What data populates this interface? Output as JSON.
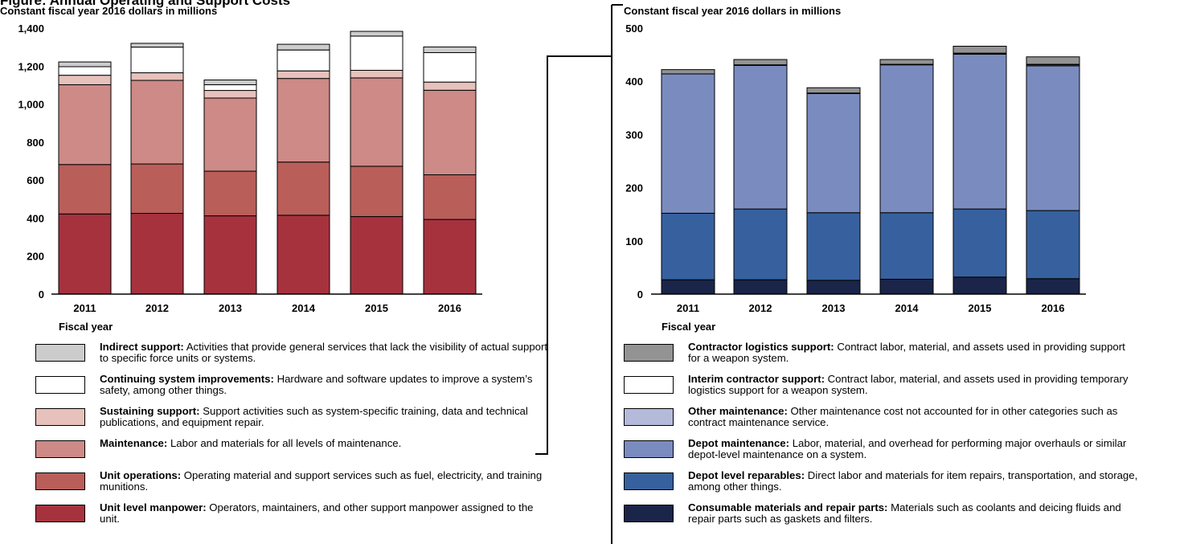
{
  "figure": {
    "title_fragment": "Figure: Annual Operating and Support Costs",
    "left_units": "Constant fiscal year 2016 dollars in millions",
    "right_units": "Constant fiscal year 2016 dollars in millions"
  },
  "chart_data": [
    {
      "type": "bar",
      "stacked": true,
      "subtitle": "Constant fiscal year 2016 dollars in millions",
      "xlabel": "Fiscal year",
      "ylabel": "",
      "categories": [
        "2011",
        "2012",
        "2013",
        "2014",
        "2015",
        "2016"
      ],
      "ylim": [
        0,
        1400
      ],
      "yticks": [
        0,
        200,
        400,
        600,
        800,
        1000,
        1200,
        1400
      ],
      "ytick_labels": [
        "0",
        "200",
        "400",
        "600",
        "800",
        "1,000",
        "1,200",
        "1,400"
      ],
      "grid": false,
      "series": [
        {
          "name": "Unit level manpower",
          "color": "#A6323E",
          "values": [
            422,
            425,
            412,
            415,
            408,
            393
          ]
        },
        {
          "name": "Unit operations",
          "color": "#BA5E5A",
          "values": [
            260,
            260,
            235,
            280,
            265,
            235
          ]
        },
        {
          "name": "Maintenance",
          "color": "#CD8A86",
          "values": [
            420,
            440,
            385,
            440,
            465,
            445
          ]
        },
        {
          "name": "Sustaining support",
          "color": "#E7C1BB",
          "values": [
            50,
            40,
            40,
            40,
            40,
            43
          ]
        },
        {
          "name": "Continuing system improvements",
          "color": "#FFFFFF",
          "values": [
            45,
            135,
            30,
            110,
            180,
            155
          ]
        },
        {
          "name": "Indirect support",
          "color": "#CCCCCC",
          "values": [
            25,
            20,
            25,
            30,
            25,
            30
          ]
        }
      ]
    },
    {
      "type": "bar",
      "stacked": true,
      "subtitle": "Constant fiscal year 2016 dollars in millions",
      "xlabel": "Fiscal year",
      "ylabel": "",
      "categories": [
        "2011",
        "2012",
        "2013",
        "2014",
        "2015",
        "2016"
      ],
      "ylim": [
        0,
        500
      ],
      "yticks": [
        0,
        100,
        200,
        300,
        400,
        500
      ],
      "ytick_labels": [
        "0",
        "100",
        "200",
        "300",
        "400",
        "500"
      ],
      "grid": false,
      "series": [
        {
          "name": "Consumable materials and repair parts",
          "color": "#1A2549",
          "values": [
            27,
            27,
            26,
            28,
            32,
            29
          ]
        },
        {
          "name": "Depot level reparables",
          "color": "#37619E",
          "values": [
            125,
            133,
            127,
            125,
            128,
            128
          ]
        },
        {
          "name": "Depot maintenance",
          "color": "#7A8CBF",
          "values": [
            262,
            270,
            224,
            278,
            291,
            272
          ]
        },
        {
          "name": "Other maintenance",
          "color": "#B4BADA",
          "values": [
            0,
            1,
            1,
            1,
            1,
            2
          ]
        },
        {
          "name": "Interim contractor support",
          "color": "#FFFFFF",
          "values": [
            0,
            0,
            0,
            0,
            1,
            1
          ]
        },
        {
          "name": "Contractor logistics support",
          "color": "#939393",
          "values": [
            8,
            10,
            10,
            9,
            13,
            14
          ]
        }
      ]
    }
  ],
  "left_legend": [
    {
      "label": "Indirect support:",
      "desc": "Activities that provide general services that lack the visibility of actual support to specific force units or systems.",
      "color": "#CCCCCC"
    },
    {
      "label": "Continuing system improvements:",
      "desc": "Hardware and software updates to improve a system’s safety, among other things.",
      "color": "#FFFFFF"
    },
    {
      "label": "Sustaining support:",
      "desc": "Support activities such as system-specific training, data and technical publications, and equipment repair.",
      "color": "#E7C1BB"
    },
    {
      "label": "Maintenance:",
      "desc": "Labor and materials for all levels of maintenance.",
      "color": "#CD8A86"
    },
    {
      "label": "Unit operations:",
      "desc": "Operating material and support services such as fuel, electricity, and training munitions.",
      "color": "#BA5E5A"
    },
    {
      "label": "Unit level manpower:",
      "desc": "Operators, maintainers, and other support manpower assigned to the unit.",
      "color": "#A6323E"
    }
  ],
  "right_legend": [
    {
      "label": "Contractor logistics support:",
      "desc": "Contract labor, material, and assets used in providing support for a weapon system.",
      "color": "#939393"
    },
    {
      "label": "Interim contractor support:",
      "desc": "Contract labor, material, and assets used in providing temporary logistics support for a weapon system.",
      "color": "#FFFFFF"
    },
    {
      "label": "Other maintenance:",
      "desc": "Other maintenance cost not accounted for in other categories such as contract maintenance service.",
      "color": "#B4BADA"
    },
    {
      "label": "Depot maintenance:",
      "desc": "Labor, material, and overhead for performing major overhauls or similar depot-level maintenance on a system.",
      "color": "#7A8CBF"
    },
    {
      "label": "Depot level reparables:",
      "desc": "Direct labor and materials for item repairs, transportation, and storage, among other things.",
      "color": "#37619E"
    },
    {
      "label": "Consumable materials and repair parts:",
      "desc": "Materials such as coolants and deicing fluids and repair parts such as gaskets and filters.",
      "color": "#1A2549"
    }
  ]
}
